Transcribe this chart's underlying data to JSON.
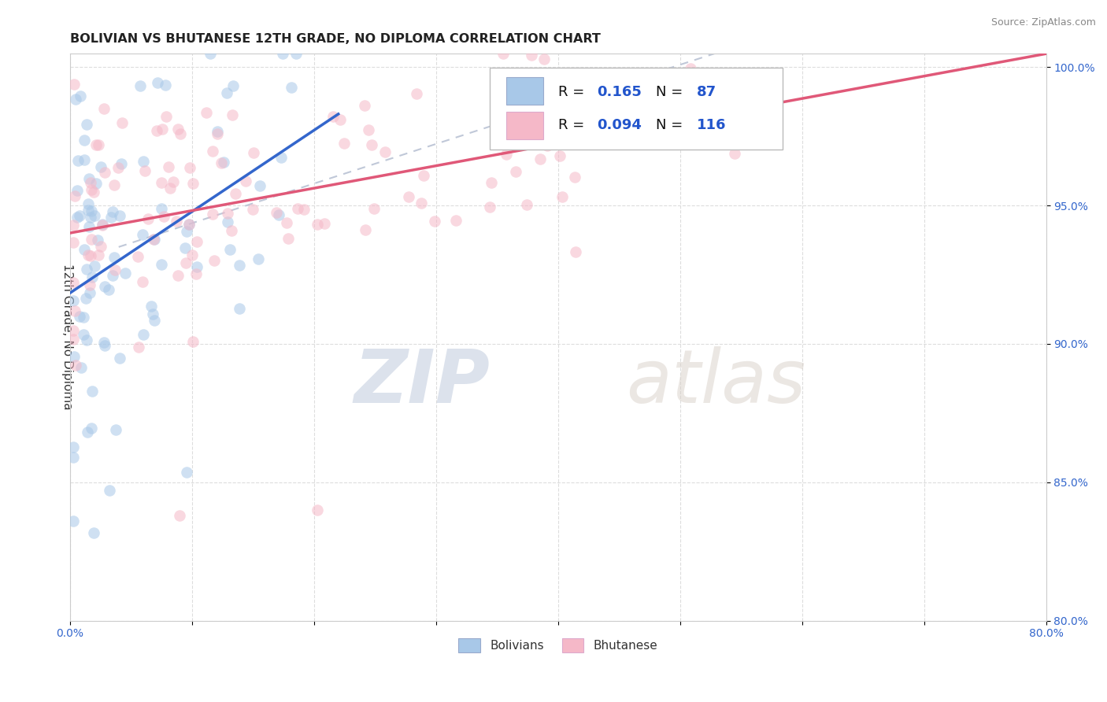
{
  "title": "BOLIVIAN VS BHUTANESE 12TH GRADE, NO DIPLOMA CORRELATION CHART",
  "source_text": "Source: ZipAtlas.com",
  "ylabel": "12th Grade, No Diploma",
  "xlim": [
    0.0,
    0.8
  ],
  "ylim": [
    0.8,
    1.005
  ],
  "xticks": [
    0.0,
    0.1,
    0.2,
    0.3,
    0.4,
    0.5,
    0.6,
    0.7,
    0.8
  ],
  "xticklabels": [
    "0.0%",
    "",
    "",
    "",
    "",
    "",
    "",
    "",
    "80.0%"
  ],
  "yticks": [
    0.8,
    0.85,
    0.9,
    0.95,
    1.0
  ],
  "yticklabels": [
    "80.0%",
    "85.0%",
    "90.0%",
    "95.0%",
    "100.0%"
  ],
  "bolivian_color": "#a8c8e8",
  "bhutanese_color": "#f5b8c8",
  "bolivian_line_color": "#3366cc",
  "bhutanese_line_color": "#e05878",
  "diagonal_color": "#c0c8d8",
  "R_bolivian": "0.165",
  "N_bolivian": "87",
  "R_bhutanese": "0.094",
  "N_bhutanese": "116",
  "legend_label_bolivians": "Bolivians",
  "legend_label_bhutanese": "Bhutanese",
  "watermark_zip": "ZIP",
  "watermark_atlas": "atlas",
  "scatter_size": 110,
  "scatter_alpha": 0.55,
  "title_fontsize": 11.5,
  "tick_fontsize": 10,
  "ytick_color": "#3366cc",
  "xtick_color": "#3366cc",
  "ylabel_color": "#333333",
  "grid_color": "#dddddd",
  "grid_style": "--",
  "legend_box_color": "#ffffff",
  "legend_border_color": "#cccccc"
}
